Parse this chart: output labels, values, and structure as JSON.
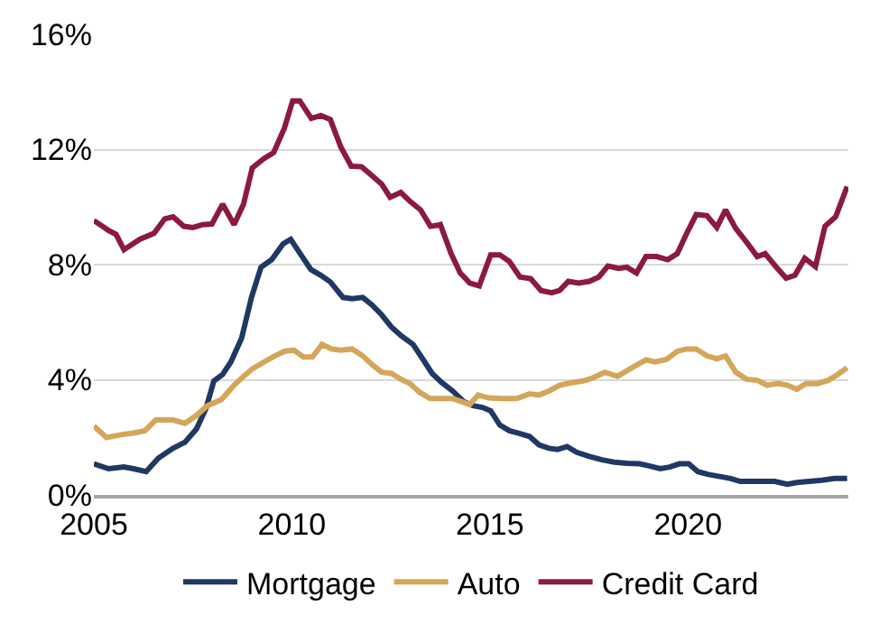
{
  "chart_data": {
    "type": "line",
    "xlim": [
      2005,
      2024.05
    ],
    "xticks": [
      2005,
      2010,
      2015,
      2020
    ],
    "ylim": [
      0,
      16
    ],
    "yticks": [
      {
        "value": 0,
        "label": "0%"
      },
      {
        "value": 4,
        "label": "4%"
      },
      {
        "value": 8,
        "label": "8%"
      },
      {
        "value": 12,
        "label": "12%"
      },
      {
        "value": 16,
        "label": "16%"
      }
    ],
    "grid": "y",
    "legend": "bottom",
    "marker": "none",
    "line_style": "solid",
    "series": [
      {
        "name": "Mortgage",
        "color": "#1f3864",
        "x": [
          2005.0,
          2005.37,
          2005.76,
          2006.0,
          2006.32,
          2006.63,
          2007.0,
          2007.3,
          2007.59,
          2007.83,
          2008.03,
          2008.25,
          2008.46,
          2008.73,
          2008.98,
          2009.22,
          2009.49,
          2009.78,
          2009.97,
          2010.21,
          2010.48,
          2010.73,
          2010.97,
          2011.29,
          2011.52,
          2011.79,
          2012.03,
          2012.27,
          2012.51,
          2012.75,
          2013.06,
          2013.3,
          2013.54,
          2013.78,
          2014.06,
          2014.33,
          2014.57,
          2014.81,
          2015.02,
          2015.25,
          2015.49,
          2015.76,
          2016.0,
          2016.24,
          2016.49,
          2016.71,
          2016.95,
          2017.19,
          2017.51,
          2017.83,
          2018.14,
          2018.46,
          2018.78,
          2019.02,
          2019.3,
          2019.54,
          2019.78,
          2020.02,
          2020.25,
          2020.52,
          2020.84,
          2021.08,
          2021.32,
          2021.56,
          2021.87,
          2022.19,
          2022.51,
          2022.75,
          2023.06,
          2023.38,
          2023.7,
          2024.02
        ],
        "values": [
          1.08,
          0.91,
          0.97,
          0.91,
          0.81,
          1.28,
          1.62,
          1.83,
          2.29,
          3.0,
          3.96,
          4.18,
          4.62,
          5.44,
          6.86,
          7.91,
          8.17,
          8.72,
          8.88,
          8.38,
          7.83,
          7.63,
          7.4,
          6.86,
          6.82,
          6.86,
          6.59,
          6.25,
          5.84,
          5.54,
          5.23,
          4.73,
          4.22,
          3.91,
          3.61,
          3.25,
          3.1,
          3.04,
          2.92,
          2.43,
          2.23,
          2.13,
          2.03,
          1.74,
          1.62,
          1.58,
          1.68,
          1.48,
          1.34,
          1.22,
          1.14,
          1.1,
          1.08,
          1.01,
          0.91,
          0.97,
          1.08,
          1.08,
          0.81,
          0.71,
          0.63,
          0.57,
          0.47,
          0.47,
          0.47,
          0.47,
          0.37,
          0.43,
          0.47,
          0.51,
          0.57,
          0.57
        ]
      },
      {
        "name": "Auto",
        "color": "#d4a65a",
        "x": [
          2005.0,
          2005.32,
          2005.68,
          2006.0,
          2006.29,
          2006.56,
          2007.0,
          2007.3,
          2007.59,
          2007.87,
          2008.22,
          2008.54,
          2008.78,
          2009.0,
          2009.3,
          2009.57,
          2009.81,
          2010.05,
          2010.29,
          2010.52,
          2010.76,
          2011.0,
          2011.24,
          2011.52,
          2011.79,
          2012.03,
          2012.27,
          2012.51,
          2012.75,
          2012.98,
          2013.22,
          2013.49,
          2013.78,
          2014.06,
          2014.49,
          2014.7,
          2014.97,
          2015.29,
          2015.68,
          2016.0,
          2016.24,
          2016.49,
          2016.76,
          2017.03,
          2017.35,
          2017.59,
          2017.9,
          2018.22,
          2018.54,
          2018.94,
          2019.17,
          2019.46,
          2019.73,
          2019.97,
          2020.21,
          2020.48,
          2020.73,
          2020.95,
          2021.21,
          2021.48,
          2021.75,
          2022.0,
          2022.27,
          2022.51,
          2022.75,
          2022.98,
          2023.27,
          2023.54,
          2023.78,
          2024.02
        ],
        "values": [
          2.39,
          1.99,
          2.09,
          2.15,
          2.23,
          2.6,
          2.6,
          2.49,
          2.76,
          3.1,
          3.31,
          3.81,
          4.12,
          4.38,
          4.62,
          4.83,
          4.99,
          5.03,
          4.79,
          4.79,
          5.23,
          5.07,
          5.03,
          5.07,
          4.83,
          4.52,
          4.26,
          4.22,
          4.02,
          3.87,
          3.57,
          3.35,
          3.35,
          3.35,
          3.14,
          3.47,
          3.37,
          3.35,
          3.35,
          3.51,
          3.47,
          3.61,
          3.81,
          3.89,
          3.96,
          4.06,
          4.26,
          4.12,
          4.38,
          4.69,
          4.62,
          4.71,
          4.99,
          5.07,
          5.07,
          4.83,
          4.73,
          4.83,
          4.26,
          4.02,
          3.98,
          3.81,
          3.87,
          3.81,
          3.67,
          3.87,
          3.87,
          3.98,
          4.18,
          4.42
        ]
      },
      {
        "name": "Credit Card",
        "color": "#8b1a3f",
        "x": [
          2005.0,
          2005.37,
          2005.56,
          2005.76,
          2006.16,
          2006.52,
          2006.79,
          2007.0,
          2007.27,
          2007.5,
          2007.75,
          2007.98,
          2008.25,
          2008.54,
          2008.78,
          2009.0,
          2009.29,
          2009.54,
          2009.81,
          2010.02,
          2010.2,
          2010.49,
          2010.73,
          2010.97,
          2011.24,
          2011.5,
          2011.76,
          2012.03,
          2012.27,
          2012.48,
          2012.75,
          2012.98,
          2013.25,
          2013.5,
          2013.7,
          2013.75,
          2014.02,
          2014.25,
          2014.49,
          2014.73,
          2015.02,
          2015.25,
          2015.49,
          2015.76,
          2016.03,
          2016.29,
          2016.56,
          2016.76,
          2016.98,
          2017.24,
          2017.51,
          2017.75,
          2017.98,
          2018.25,
          2018.46,
          2018.7,
          2018.94,
          2019.21,
          2019.49,
          2019.73,
          2019.97,
          2020.21,
          2020.48,
          2020.73,
          2020.95,
          2021.21,
          2021.48,
          2021.75,
          2021.95,
          2022.22,
          2022.48,
          2022.7,
          2022.95,
          2023.22,
          2023.46,
          2023.73,
          2024.02
        ],
        "values": [
          9.53,
          9.19,
          9.05,
          8.52,
          8.88,
          9.09,
          9.59,
          9.66,
          9.33,
          9.29,
          9.39,
          9.41,
          10.1,
          9.39,
          10.1,
          11.36,
          11.68,
          11.89,
          12.74,
          13.69,
          13.69,
          13.08,
          13.18,
          13.04,
          12.07,
          11.42,
          11.4,
          11.08,
          10.79,
          10.34,
          10.51,
          10.2,
          9.9,
          9.33,
          9.37,
          9.39,
          8.38,
          7.71,
          7.36,
          7.26,
          8.34,
          8.34,
          8.11,
          7.57,
          7.51,
          7.1,
          7.02,
          7.1,
          7.42,
          7.36,
          7.42,
          7.57,
          7.95,
          7.87,
          7.91,
          7.71,
          8.28,
          8.28,
          8.17,
          8.38,
          9.09,
          9.74,
          9.7,
          9.29,
          9.9,
          9.25,
          8.78,
          8.28,
          8.38,
          7.93,
          7.53,
          7.63,
          8.22,
          7.93,
          9.33,
          9.66,
          10.71
        ]
      }
    ]
  }
}
